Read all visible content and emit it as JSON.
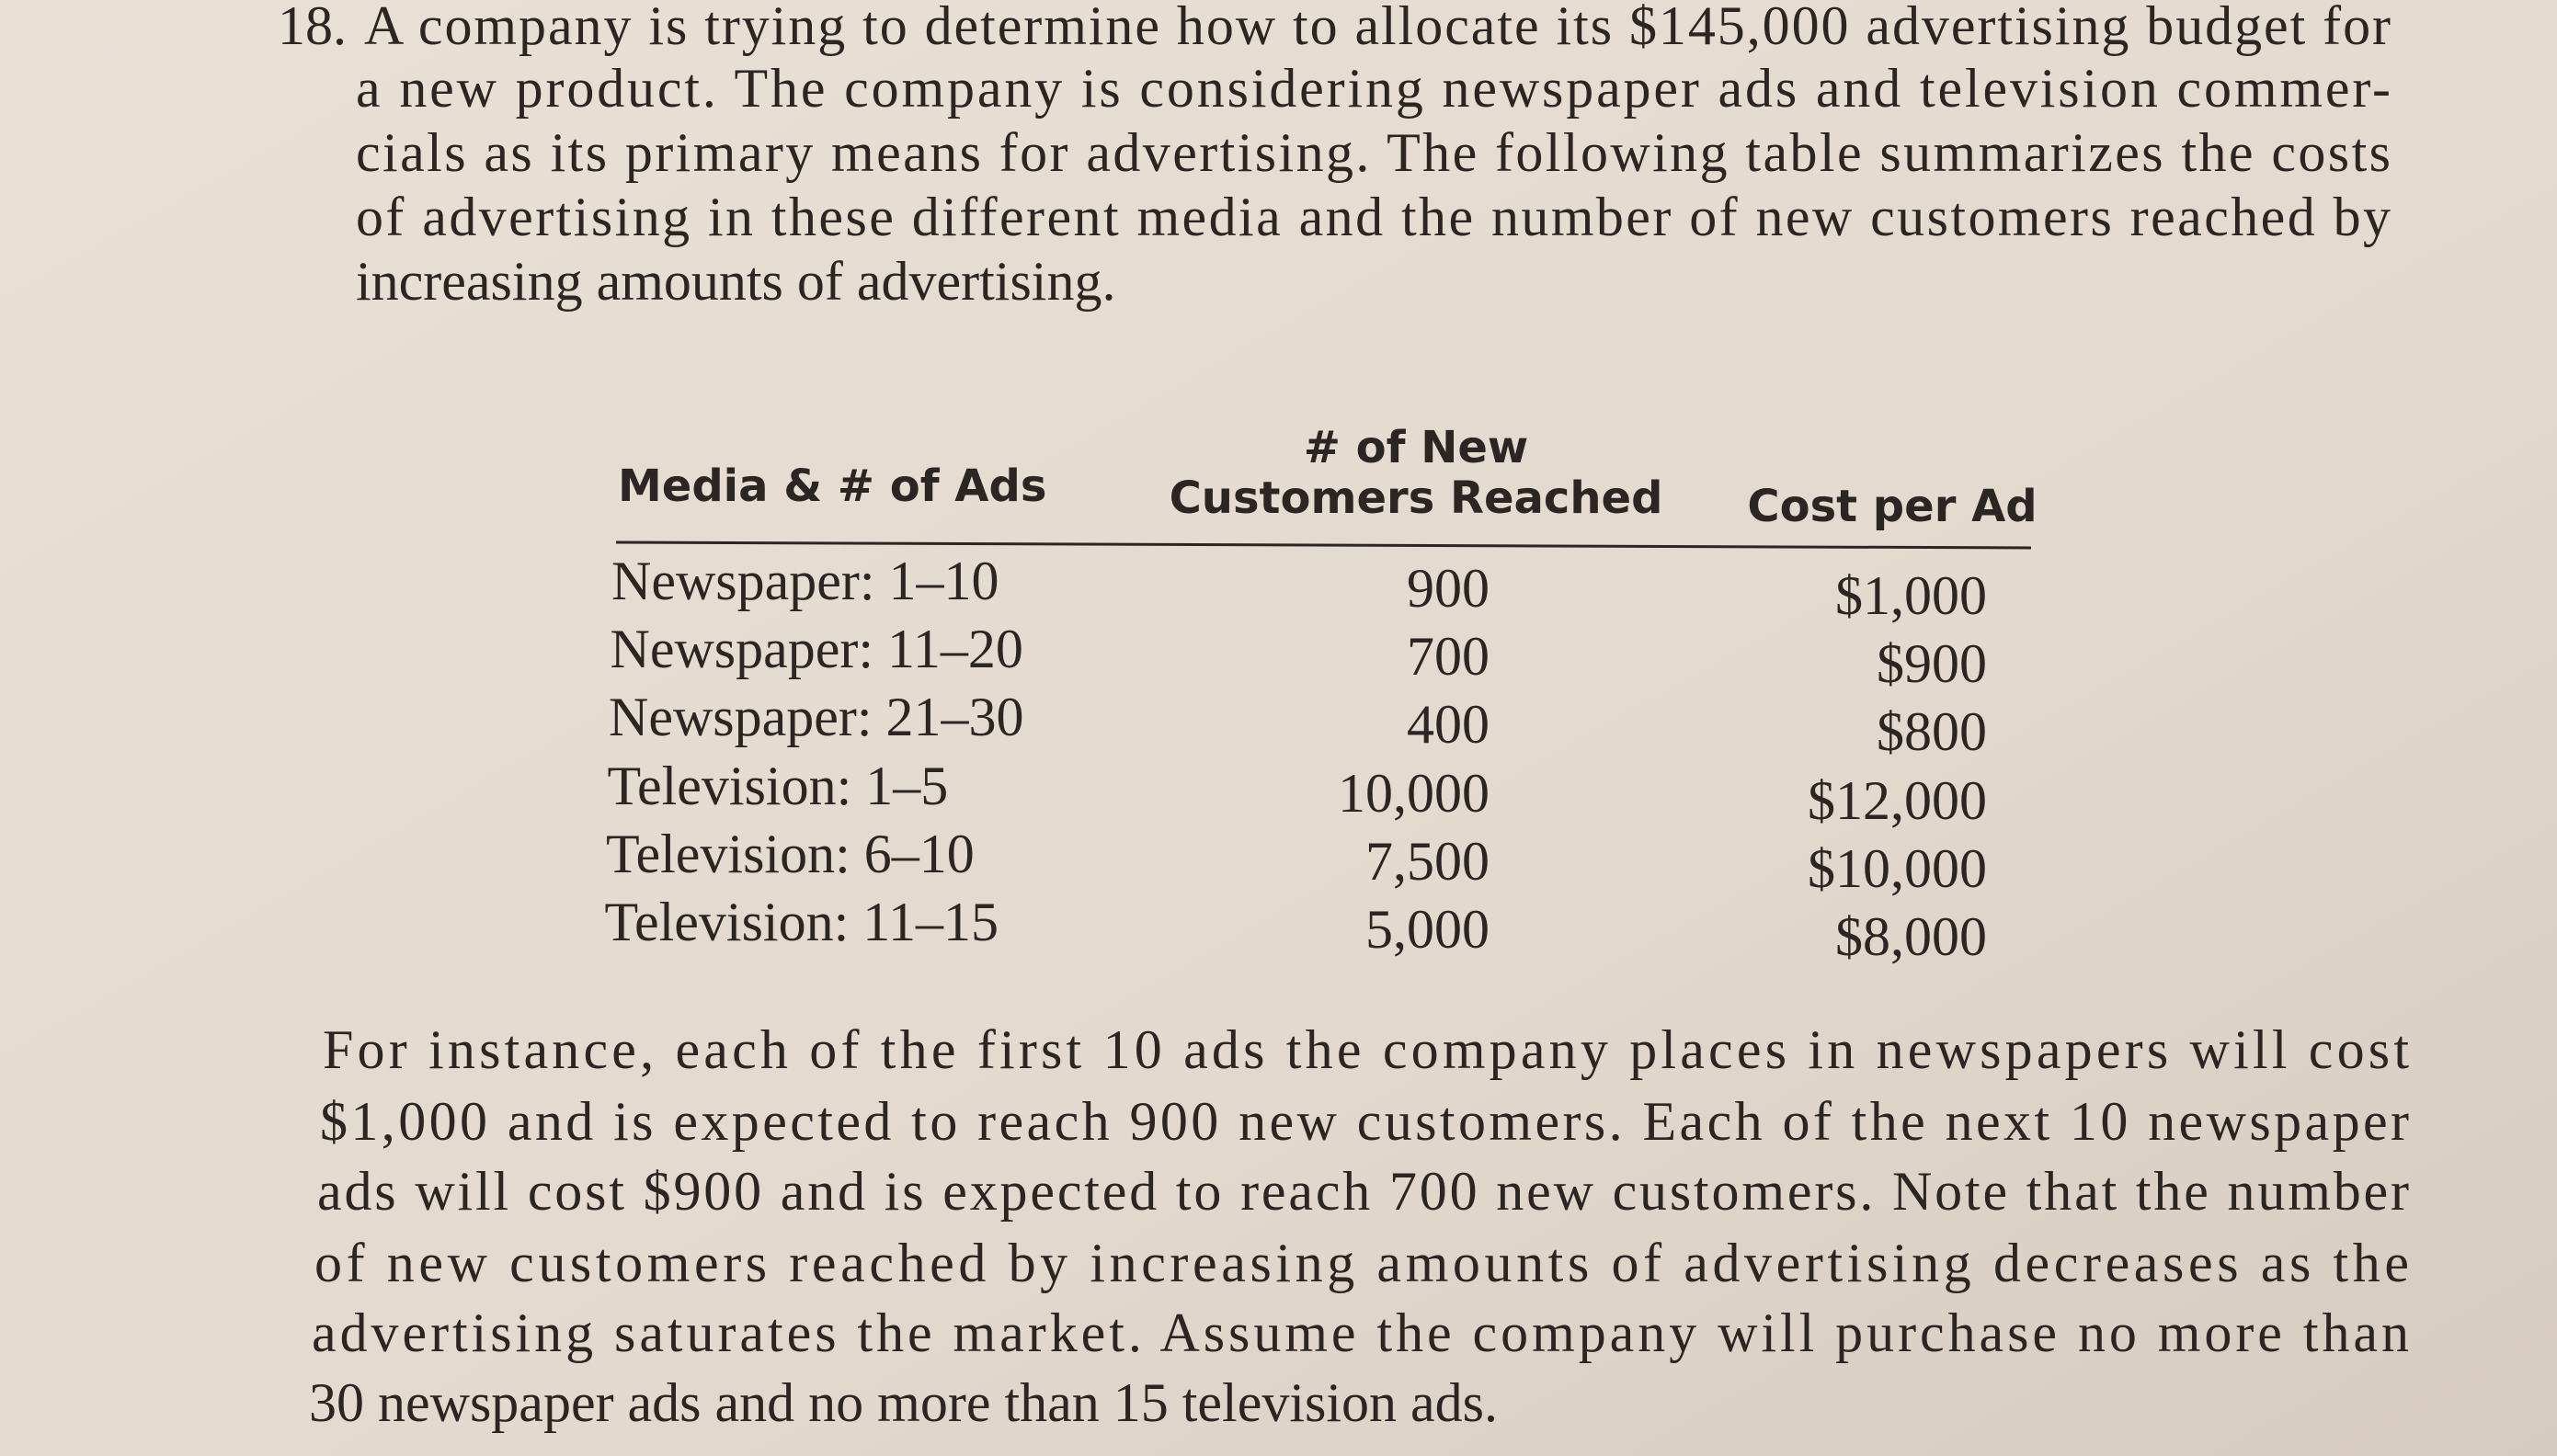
{
  "problem": {
    "number": "18.",
    "intro_lines": [
      "A company is trying to determine how to allocate its $145,000 advertising budget for",
      "a new product. The company is considering newspaper ads and television commer-",
      "cials as its primary means for advertising. The following table summarizes the costs",
      "of advertising in these different media and the number of new customers reached by",
      "increasing amounts of advertising."
    ],
    "table": {
      "headers": [
        [
          "Media & # of Ads"
        ],
        [
          "# of New",
          "Customers Reached"
        ],
        [
          "Cost per Ad"
        ]
      ],
      "rows": [
        [
          "Newspaper: 1–10",
          "900",
          "$1,000"
        ],
        [
          "Newspaper: 11–20",
          "700",
          "$900"
        ],
        [
          "Newspaper: 21–30",
          "400",
          "$800"
        ],
        [
          "Television: 1–5",
          "10,000",
          "$12,000"
        ],
        [
          "Television: 6–10",
          "7,500",
          "$10,000"
        ],
        [
          "Television: 11–15",
          "5,000",
          "$8,000"
        ]
      ]
    },
    "closing_lines": [
      "For instance, each of the first 10 ads the company places in newspapers will cost",
      "$1,000 and is expected to reach 900 new customers. Each of the next 10 newspaper",
      "ads will cost $900 and is expected to reach 700 new customers. Note that the number",
      "of new customers reached by increasing amounts of advertising decreases as the",
      "advertising saturates the market. Assume the company will purchase no more than",
      "30 newspaper ads and no more than 15 television ads."
    ]
  }
}
